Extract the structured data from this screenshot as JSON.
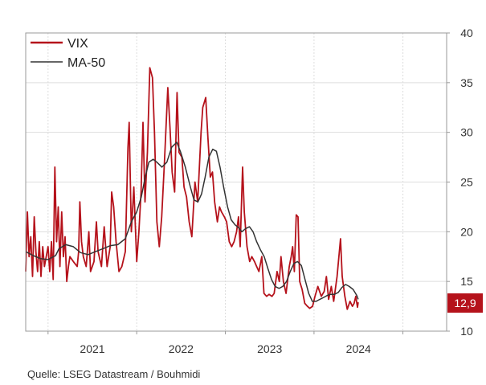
{
  "chart_data": {
    "type": "line",
    "legend_position": "top-left",
    "grid": true,
    "ylim": [
      10,
      40
    ],
    "y_ticks": [
      "10",
      "15",
      "20",
      "25",
      "30",
      "35",
      "40"
    ],
    "x_tick_labels": [
      "2021",
      "2022",
      "2023",
      "2024"
    ],
    "xlim": [
      "2020-10-01",
      "2025-06-30"
    ],
    "y_axis_side": "right",
    "last_value_label": "12,9",
    "series": [
      {
        "name": "VIX",
        "color": "#b5121b",
        "points": [
          [
            "2020-10-01",
            16.0
          ],
          [
            "2020-10-08",
            22.0
          ],
          [
            "2020-10-15",
            17.5
          ],
          [
            "2020-10-22",
            19.5
          ],
          [
            "2020-10-29",
            15.5
          ],
          [
            "2020-11-05",
            21.5
          ],
          [
            "2020-11-12",
            18.0
          ],
          [
            "2020-11-19",
            16.0
          ],
          [
            "2020-11-26",
            19.0
          ],
          [
            "2020-12-03",
            15.5
          ],
          [
            "2020-12-10",
            18.5
          ],
          [
            "2020-12-17",
            16.5
          ],
          [
            "2021-01-01",
            18.5
          ],
          [
            "2021-01-08",
            16.0
          ],
          [
            "2021-01-15",
            19.0
          ],
          [
            "2021-01-22",
            15.2
          ],
          [
            "2021-01-29",
            26.5
          ],
          [
            "2021-02-05",
            19.0
          ],
          [
            "2021-02-12",
            22.5
          ],
          [
            "2021-02-19",
            16.5
          ],
          [
            "2021-02-26",
            22.0
          ],
          [
            "2021-03-05",
            17.5
          ],
          [
            "2021-03-12",
            19.5
          ],
          [
            "2021-03-19",
            15.0
          ],
          [
            "2021-03-26",
            16.5
          ],
          [
            "2021-04-01",
            17.5
          ],
          [
            "2021-04-15",
            17.0
          ],
          [
            "2021-05-01",
            16.5
          ],
          [
            "2021-05-07",
            18.0
          ],
          [
            "2021-05-12",
            23.0
          ],
          [
            "2021-05-19",
            19.0
          ],
          [
            "2021-05-26",
            17.5
          ],
          [
            "2021-06-07",
            16.5
          ],
          [
            "2021-06-18",
            20.0
          ],
          [
            "2021-06-25",
            16.0
          ],
          [
            "2021-07-09",
            17.0
          ],
          [
            "2021-07-19",
            21.0
          ],
          [
            "2021-07-26",
            18.0
          ],
          [
            "2021-08-09",
            16.5
          ],
          [
            "2021-08-20",
            20.5
          ],
          [
            "2021-09-01",
            16.5
          ],
          [
            "2021-09-14",
            18.5
          ],
          [
            "2021-09-20",
            24.0
          ],
          [
            "2021-09-28",
            22.5
          ],
          [
            "2021-10-08",
            19.0
          ],
          [
            "2021-10-20",
            16.0
          ],
          [
            "2021-11-01",
            16.5
          ],
          [
            "2021-11-15",
            18.0
          ],
          [
            "2021-11-26",
            28.5
          ],
          [
            "2021-12-01",
            31.0
          ],
          [
            "2021-12-10",
            20.0
          ],
          [
            "2021-12-20",
            24.5
          ],
          [
            "2022-01-01",
            17.0
          ],
          [
            "2022-01-10",
            20.0
          ],
          [
            "2022-01-19",
            24.0
          ],
          [
            "2022-01-27",
            31.0
          ],
          [
            "2022-02-04",
            23.0
          ],
          [
            "2022-02-14",
            28.0
          ],
          [
            "2022-02-24",
            36.5
          ],
          [
            "2022-03-07",
            35.5
          ],
          [
            "2022-03-15",
            30.0
          ],
          [
            "2022-03-25",
            21.0
          ],
          [
            "2022-04-04",
            18.5
          ],
          [
            "2022-04-14",
            21.5
          ],
          [
            "2022-04-25",
            27.0
          ],
          [
            "2022-05-09",
            34.5
          ],
          [
            "2022-05-18",
            30.5
          ],
          [
            "2022-05-27",
            26.0
          ],
          [
            "2022-06-06",
            24.0
          ],
          [
            "2022-06-16",
            34.0
          ],
          [
            "2022-06-24",
            28.0
          ],
          [
            "2022-07-06",
            27.5
          ],
          [
            "2022-07-15",
            24.5
          ],
          [
            "2022-07-25",
            23.5
          ],
          [
            "2022-08-05",
            21.0
          ],
          [
            "2022-08-16",
            19.5
          ],
          [
            "2022-08-29",
            25.0
          ],
          [
            "2022-09-09",
            23.0
          ],
          [
            "2022-09-23",
            30.0
          ],
          [
            "2022-09-30",
            32.5
          ],
          [
            "2022-10-12",
            33.5
          ],
          [
            "2022-10-21",
            29.5
          ],
          [
            "2022-10-31",
            25.5
          ],
          [
            "2022-11-09",
            26.0
          ],
          [
            "2022-11-18",
            23.0
          ],
          [
            "2022-11-29",
            21.0
          ],
          [
            "2022-12-08",
            22.5
          ],
          [
            "2022-12-16",
            22.0
          ],
          [
            "2022-12-28",
            21.5
          ],
          [
            "2023-01-06",
            21.0
          ],
          [
            "2023-01-17",
            19.0
          ],
          [
            "2023-01-27",
            18.5
          ],
          [
            "2023-02-06",
            19.0
          ],
          [
            "2023-02-16",
            20.0
          ],
          [
            "2023-02-24",
            21.5
          ],
          [
            "2023-03-03",
            18.5
          ],
          [
            "2023-03-13",
            26.5
          ],
          [
            "2023-03-20",
            22.0
          ],
          [
            "2023-03-31",
            18.5
          ],
          [
            "2023-04-11",
            17.0
          ],
          [
            "2023-04-20",
            17.5
          ],
          [
            "2023-05-01",
            17.0
          ],
          [
            "2023-05-10",
            16.5
          ],
          [
            "2023-05-19",
            16.0
          ],
          [
            "2023-05-31",
            17.5
          ],
          [
            "2023-06-09",
            13.8
          ],
          [
            "2023-06-20",
            13.5
          ],
          [
            "2023-06-30",
            13.7
          ],
          [
            "2023-07-12",
            13.5
          ],
          [
            "2023-07-21",
            13.8
          ],
          [
            "2023-08-02",
            16.0
          ],
          [
            "2023-08-11",
            15.0
          ],
          [
            "2023-08-18",
            17.5
          ],
          [
            "2023-08-28",
            15.0
          ],
          [
            "2023-09-08",
            13.8
          ],
          [
            "2023-09-21",
            16.5
          ],
          [
            "2023-09-29",
            17.5
          ],
          [
            "2023-10-05",
            18.5
          ],
          [
            "2023-10-12",
            16.0
          ],
          [
            "2023-10-20",
            21.7
          ],
          [
            "2023-10-27",
            21.5
          ],
          [
            "2023-11-03",
            15.0
          ],
          [
            "2023-11-13",
            14.2
          ],
          [
            "2023-11-24",
            12.8
          ],
          [
            "2023-12-05",
            12.5
          ],
          [
            "2023-12-14",
            12.3
          ],
          [
            "2023-12-26",
            12.5
          ],
          [
            "2024-01-05",
            13.5
          ],
          [
            "2024-01-17",
            14.5
          ],
          [
            "2024-01-31",
            13.5
          ],
          [
            "2024-02-12",
            14.0
          ],
          [
            "2024-02-21",
            15.5
          ],
          [
            "2024-03-01",
            13.2
          ],
          [
            "2024-03-12",
            14.5
          ],
          [
            "2024-03-22",
            13.0
          ],
          [
            "2024-04-05",
            15.5
          ],
          [
            "2024-04-16",
            18.5
          ],
          [
            "2024-04-19",
            19.3
          ],
          [
            "2024-04-26",
            15.5
          ],
          [
            "2024-05-07",
            13.5
          ],
          [
            "2024-05-17",
            12.2
          ],
          [
            "2024-05-28",
            13.0
          ],
          [
            "2024-06-07",
            12.5
          ],
          [
            "2024-06-14",
            12.8
          ],
          [
            "2024-06-21",
            13.5
          ],
          [
            "2024-06-28",
            12.4
          ],
          [
            "2024-07-01",
            12.9
          ]
        ]
      },
      {
        "name": "MA-50",
        "color": "#333333",
        "points": [
          [
            "2020-10-01",
            18.0
          ],
          [
            "2020-11-01",
            17.6
          ],
          [
            "2020-12-01",
            17.3
          ],
          [
            "2021-01-01",
            17.2
          ],
          [
            "2021-02-01",
            17.6
          ],
          [
            "2021-02-15",
            18.3
          ],
          [
            "2021-03-15",
            18.7
          ],
          [
            "2021-04-15",
            18.5
          ],
          [
            "2021-05-15",
            17.9
          ],
          [
            "2021-06-15",
            17.7
          ],
          [
            "2021-07-15",
            18.0
          ],
          [
            "2021-08-15",
            18.3
          ],
          [
            "2021-09-15",
            18.6
          ],
          [
            "2021-10-15",
            18.7
          ],
          [
            "2021-11-15",
            19.3
          ],
          [
            "2021-12-10",
            21.0
          ],
          [
            "2022-01-01",
            22.0
          ],
          [
            "2022-01-20",
            23.5
          ],
          [
            "2022-02-05",
            25.5
          ],
          [
            "2022-02-20",
            27.0
          ],
          [
            "2022-03-10",
            27.3
          ],
          [
            "2022-03-25",
            27.0
          ],
          [
            "2022-04-15",
            26.5
          ],
          [
            "2022-05-05",
            27.0
          ],
          [
            "2022-05-25",
            28.5
          ],
          [
            "2022-06-15",
            29.0
          ],
          [
            "2022-07-01",
            28.0
          ],
          [
            "2022-07-20",
            26.5
          ],
          [
            "2022-08-10",
            24.5
          ],
          [
            "2022-08-25",
            23.2
          ],
          [
            "2022-09-10",
            23.0
          ],
          [
            "2022-09-25",
            23.8
          ],
          [
            "2022-10-10",
            25.5
          ],
          [
            "2022-10-25",
            27.5
          ],
          [
            "2022-11-10",
            28.3
          ],
          [
            "2022-11-25",
            28.1
          ],
          [
            "2022-12-10",
            26.5
          ],
          [
            "2022-12-25",
            24.5
          ],
          [
            "2023-01-10",
            22.5
          ],
          [
            "2023-01-25",
            21.2
          ],
          [
            "2023-02-10",
            20.7
          ],
          [
            "2023-02-25",
            20.4
          ],
          [
            "2023-03-10",
            20.0
          ],
          [
            "2023-03-25",
            20.3
          ],
          [
            "2023-04-10",
            20.5
          ],
          [
            "2023-04-25",
            20.0
          ],
          [
            "2023-05-10",
            19.0
          ],
          [
            "2023-05-25",
            18.2
          ],
          [
            "2023-06-10",
            17.5
          ],
          [
            "2023-06-25",
            16.3
          ],
          [
            "2023-07-10",
            15.2
          ],
          [
            "2023-07-25",
            14.5
          ],
          [
            "2023-08-10",
            14.3
          ],
          [
            "2023-08-25",
            14.5
          ],
          [
            "2023-09-10",
            15.0
          ],
          [
            "2023-09-25",
            16.0
          ],
          [
            "2023-10-10",
            16.8
          ],
          [
            "2023-10-25",
            17.0
          ],
          [
            "2023-11-10",
            16.6
          ],
          [
            "2023-11-25",
            15.2
          ],
          [
            "2023-12-10",
            13.8
          ],
          [
            "2023-12-25",
            13.0
          ],
          [
            "2024-01-10",
            13.0
          ],
          [
            "2024-01-25",
            13.2
          ],
          [
            "2024-02-10",
            13.4
          ],
          [
            "2024-02-25",
            13.6
          ],
          [
            "2024-03-10",
            13.7
          ],
          [
            "2024-03-25",
            13.7
          ],
          [
            "2024-04-10",
            13.9
          ],
          [
            "2024-04-25",
            14.4
          ],
          [
            "2024-05-10",
            14.7
          ],
          [
            "2024-05-25",
            14.5
          ],
          [
            "2024-06-10",
            14.2
          ],
          [
            "2024-06-25",
            13.6
          ],
          [
            "2024-07-01",
            13.2
          ]
        ]
      }
    ]
  },
  "source": "Quelle: LSEG Datastream / Bouhmidi"
}
